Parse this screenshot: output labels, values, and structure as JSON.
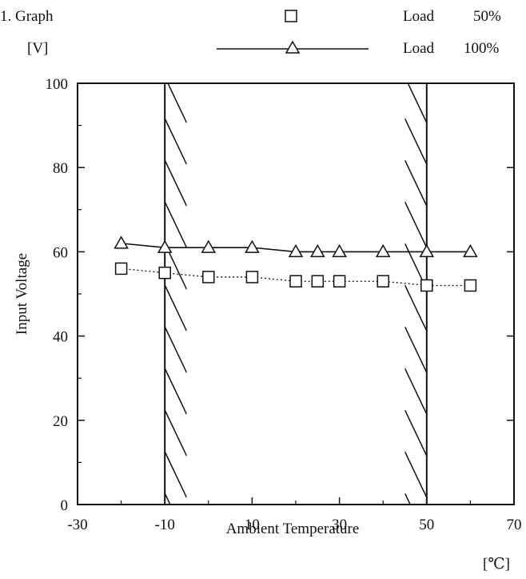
{
  "header": {
    "section_label": "1. Graph",
    "unit_label": "[V]",
    "x_unit_label": "[℃]"
  },
  "chart_data": {
    "type": "line",
    "xlabel": "Ambient Temperature",
    "ylabel": "Input Voltage",
    "xlim": [
      -30,
      70
    ],
    "ylim": [
      0,
      100
    ],
    "x_ticks": [
      -30,
      -10,
      10,
      30,
      50,
      70
    ],
    "y_ticks": [
      0,
      20,
      40,
      60,
      80,
      100
    ],
    "grid": false,
    "legend_position": "top-right",
    "shaded_regions": [
      {
        "from": -10,
        "to": -5
      },
      {
        "from": 45,
        "to": 50
      }
    ],
    "series": [
      {
        "name": "Load 50%",
        "marker": "square",
        "line": "dotted",
        "x": [
          -20,
          -10,
          0,
          10,
          20,
          25,
          30,
          40,
          50,
          60
        ],
        "values": [
          56,
          55,
          54,
          54,
          53,
          53,
          53,
          53,
          52,
          52
        ]
      },
      {
        "name": "Load 100%",
        "marker": "triangle",
        "line": "solid",
        "x": [
          -20,
          -10,
          0,
          10,
          20,
          25,
          30,
          40,
          50,
          60
        ],
        "values": [
          62,
          61,
          61,
          61,
          60,
          60,
          60,
          60,
          60,
          60
        ]
      }
    ]
  },
  "legend": {
    "items": [
      {
        "label": "Load",
        "value": "50%"
      },
      {
        "label": "Load",
        "value": "100%"
      }
    ]
  }
}
